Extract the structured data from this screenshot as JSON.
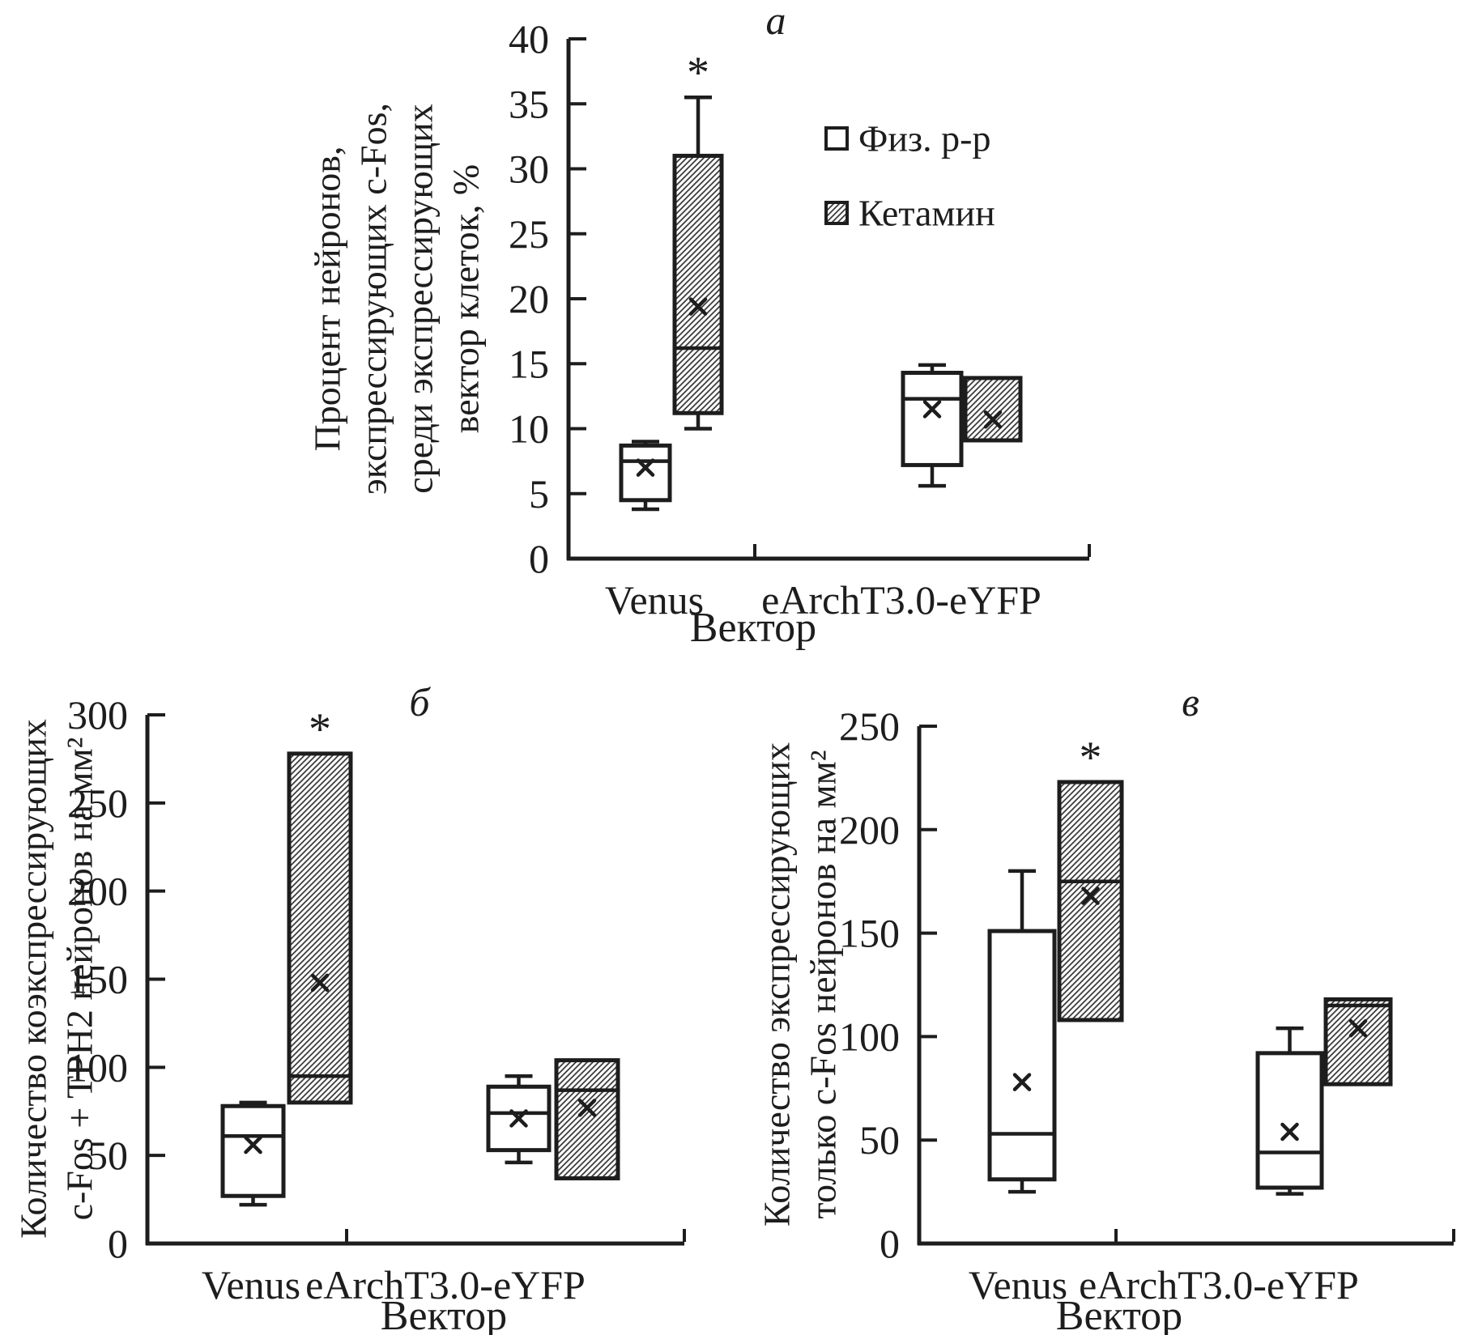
{
  "colors": {
    "ink": "#1d1d1d",
    "hatch_line": "#3c3c3c",
    "background": "#ffffff"
  },
  "legend": {
    "items": [
      {
        "key": "saline",
        "label": "Физ. р-р",
        "swatch": "plain"
      },
      {
        "key": "ketamine",
        "label": "Кетамин",
        "swatch": "hatched"
      }
    ]
  },
  "chart_data": [
    {
      "type": "box",
      "panel_label": "а",
      "ylabel_lines": [
        "Процент нейронов,",
        "экспрессирующих c-Fos,",
        "среди экспрессирующих",
        "вектор клеток, %"
      ],
      "xlabel": "Вектор",
      "ylim": [
        0,
        40
      ],
      "yticks": [
        0,
        5,
        10,
        15,
        20,
        25,
        30,
        35,
        40
      ],
      "grid": false,
      "legend_position": "right-top",
      "categories": [
        "Venus",
        "eArchT3.0-eYFP"
      ],
      "series": [
        {
          "name": "Физ. р-р",
          "key": "saline",
          "style": "plain",
          "boxes": [
            {
              "category": "Venus",
              "whisker_low": 3.8,
              "q1": 4.5,
              "median": 7.5,
              "mean": 7.0,
              "q3": 8.7,
              "whisker_high": 9.0,
              "significance": null
            },
            {
              "category": "eArchT3.0-eYFP",
              "whisker_low": 5.6,
              "q1": 7.2,
              "median": 12.3,
              "mean": 11.5,
              "q3": 14.3,
              "whisker_high": 14.9,
              "significance": null
            }
          ]
        },
        {
          "name": "Кетамин",
          "key": "ketamine",
          "style": "hatched",
          "boxes": [
            {
              "category": "Venus",
              "whisker_low": 10.0,
              "q1": 11.2,
              "median": 16.2,
              "mean": 19.4,
              "q3": 31.0,
              "whisker_high": 35.5,
              "significance": "*"
            },
            {
              "category": "eArchT3.0-eYFP",
              "whisker_low": null,
              "q1": 9.1,
              "median": null,
              "mean": 10.7,
              "q3": 13.9,
              "whisker_high": null,
              "significance": null
            }
          ]
        }
      ]
    },
    {
      "type": "box",
      "panel_label": "б",
      "ylabel_lines": [
        "Количество коэкспрессирующих",
        "c-Fos + TPH2 нейронов на мм²"
      ],
      "xlabel": "Вектор",
      "ylim": [
        0,
        300
      ],
      "yticks": [
        0,
        50,
        100,
        150,
        200,
        250,
        300
      ],
      "grid": false,
      "categories": [
        "Venus",
        "eArchT3.0-eYFP"
      ],
      "series": [
        {
          "name": "Физ. р-р",
          "key": "saline",
          "style": "plain",
          "boxes": [
            {
              "category": "Venus",
              "whisker_low": 22,
              "q1": 27,
              "median": 61,
              "mean": 56,
              "q3": 78,
              "whisker_high": 80,
              "significance": null
            },
            {
              "category": "eArchT3.0-eYFP",
              "whisker_low": 46,
              "q1": 53,
              "median": 74,
              "mean": 71,
              "q3": 89,
              "whisker_high": 95,
              "significance": null
            }
          ]
        },
        {
          "name": "Кетамин",
          "key": "ketamine",
          "style": "hatched",
          "boxes": [
            {
              "category": "Venus",
              "whisker_low": null,
              "q1": 80,
              "median": 95,
              "mean": 148,
              "q3": 278,
              "whisker_high": null,
              "significance": "*"
            },
            {
              "category": "eArchT3.0-eYFP",
              "whisker_low": null,
              "q1": 37,
              "median": 87,
              "mean": 77,
              "q3": 104,
              "whisker_high": null,
              "significance": null
            }
          ]
        }
      ]
    },
    {
      "type": "box",
      "panel_label": "в",
      "ylabel_lines": [
        "Количество экспрессирующих",
        "только c-Fos нейронов на мм²"
      ],
      "xlabel": "Вектор",
      "ylim": [
        0,
        250
      ],
      "yticks": [
        0,
        50,
        100,
        150,
        200,
        250
      ],
      "grid": false,
      "categories": [
        "Venus",
        "eArchT3.0-eYFP"
      ],
      "series": [
        {
          "name": "Физ. р-р",
          "key": "saline",
          "style": "plain",
          "boxes": [
            {
              "category": "Venus",
              "whisker_low": 25,
              "q1": 31,
              "median": 53,
              "mean": 78,
              "q3": 151,
              "whisker_high": 180,
              "significance": null
            },
            {
              "category": "eArchT3.0-eYFP",
              "whisker_low": 24,
              "q1": 27,
              "median": 44,
              "mean": 54,
              "q3": 92,
              "whisker_high": 104,
              "significance": null
            }
          ]
        },
        {
          "name": "Кетамин",
          "key": "ketamine",
          "style": "hatched",
          "boxes": [
            {
              "category": "Venus",
              "whisker_low": null,
              "q1": 108,
              "median": 175,
              "mean": 168,
              "q3": 223,
              "whisker_high": null,
              "significance": "*"
            },
            {
              "category": "eArchT3.0-eYFP",
              "whisker_low": null,
              "q1": 77,
              "median": 115,
              "mean": 104,
              "q3": 118,
              "whisker_high": null,
              "significance": null
            }
          ]
        }
      ]
    }
  ]
}
